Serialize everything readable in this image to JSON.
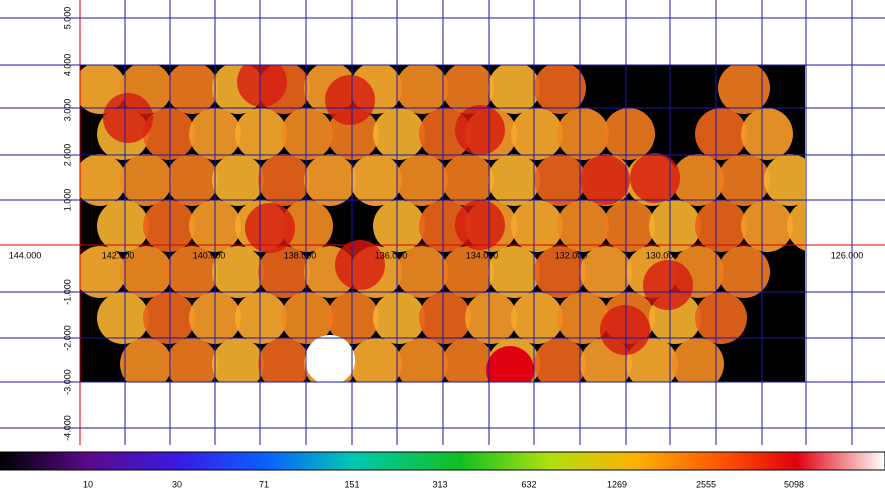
{
  "x_axis": {
    "labels": [
      "144.000",
      "142.000",
      "140.000",
      "138.000",
      "136.000",
      "134.000",
      "132.000",
      "130.000",
      "126.000"
    ]
  },
  "y_axis": {
    "labels": [
      "5.000",
      "4.000",
      "3.000",
      "2.000",
      "1.000",
      "-1.000",
      "-2.000",
      "-3.000",
      "-4.000"
    ]
  },
  "colorbar": {
    "labels": [
      "10",
      "30",
      "71",
      "151",
      "313",
      "632",
      "1269",
      "2555",
      "5098"
    ]
  }
}
